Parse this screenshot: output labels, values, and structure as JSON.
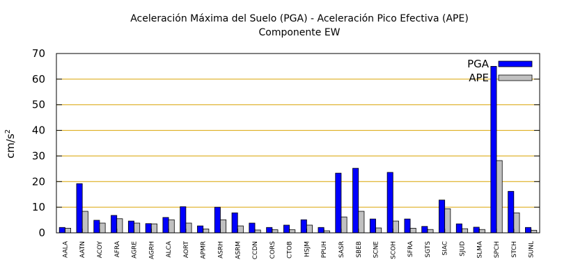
{
  "chart_data": {
    "type": "bar",
    "title": "Aceleración Máxima del Suelo (PGA) -  Aceleración Pico Efectiva (APE)",
    "subtitle": "Componente EW",
    "xlabel": "",
    "ylabel_base": "cm/s",
    "ylabel_sup": "2",
    "ylim": [
      0,
      70
    ],
    "yticks": [
      0,
      10,
      20,
      30,
      40,
      50,
      60,
      70
    ],
    "grid": "horizontal",
    "legend_position": "top-right",
    "categories": [
      "AALA",
      "AATN",
      "ACOY",
      "AFRA",
      "AGRE",
      "AGRH",
      "ALCA",
      "AORT",
      "APMR",
      "ASRH",
      "ASRM",
      "CCDN",
      "CORS",
      "CTOB",
      "HSJM",
      "PPUH",
      "SASR",
      "SBEB",
      "SCNE",
      "SCOH",
      "SFRA",
      "SGTS",
      "SIAC",
      "SJUD",
      "SLMA",
      "SPCH",
      "STCH",
      "SUNL"
    ],
    "series": [
      {
        "name": "PGA",
        "color": "#0000ff",
        "values": [
          2.1,
          19.2,
          4.9,
          6.8,
          4.6,
          3.6,
          6.0,
          10.2,
          2.7,
          10.0,
          7.8,
          3.8,
          2.1,
          3.0,
          5.1,
          2.1,
          23.3,
          25.2,
          5.4,
          23.6,
          5.4,
          2.5,
          12.8,
          3.5,
          2.2,
          65.0,
          16.2,
          2.1
        ]
      },
      {
        "name": "APE",
        "color": "#c0c0c0",
        "values": [
          1.8,
          8.4,
          3.8,
          5.5,
          3.8,
          3.5,
          5.1,
          3.8,
          1.5,
          5.1,
          2.7,
          1.1,
          1.2,
          1.2,
          3.0,
          0.8,
          6.2,
          8.4,
          1.9,
          4.6,
          1.8,
          1.3,
          9.4,
          1.6,
          1.3,
          28.2,
          7.8,
          1.0
        ]
      }
    ]
  }
}
